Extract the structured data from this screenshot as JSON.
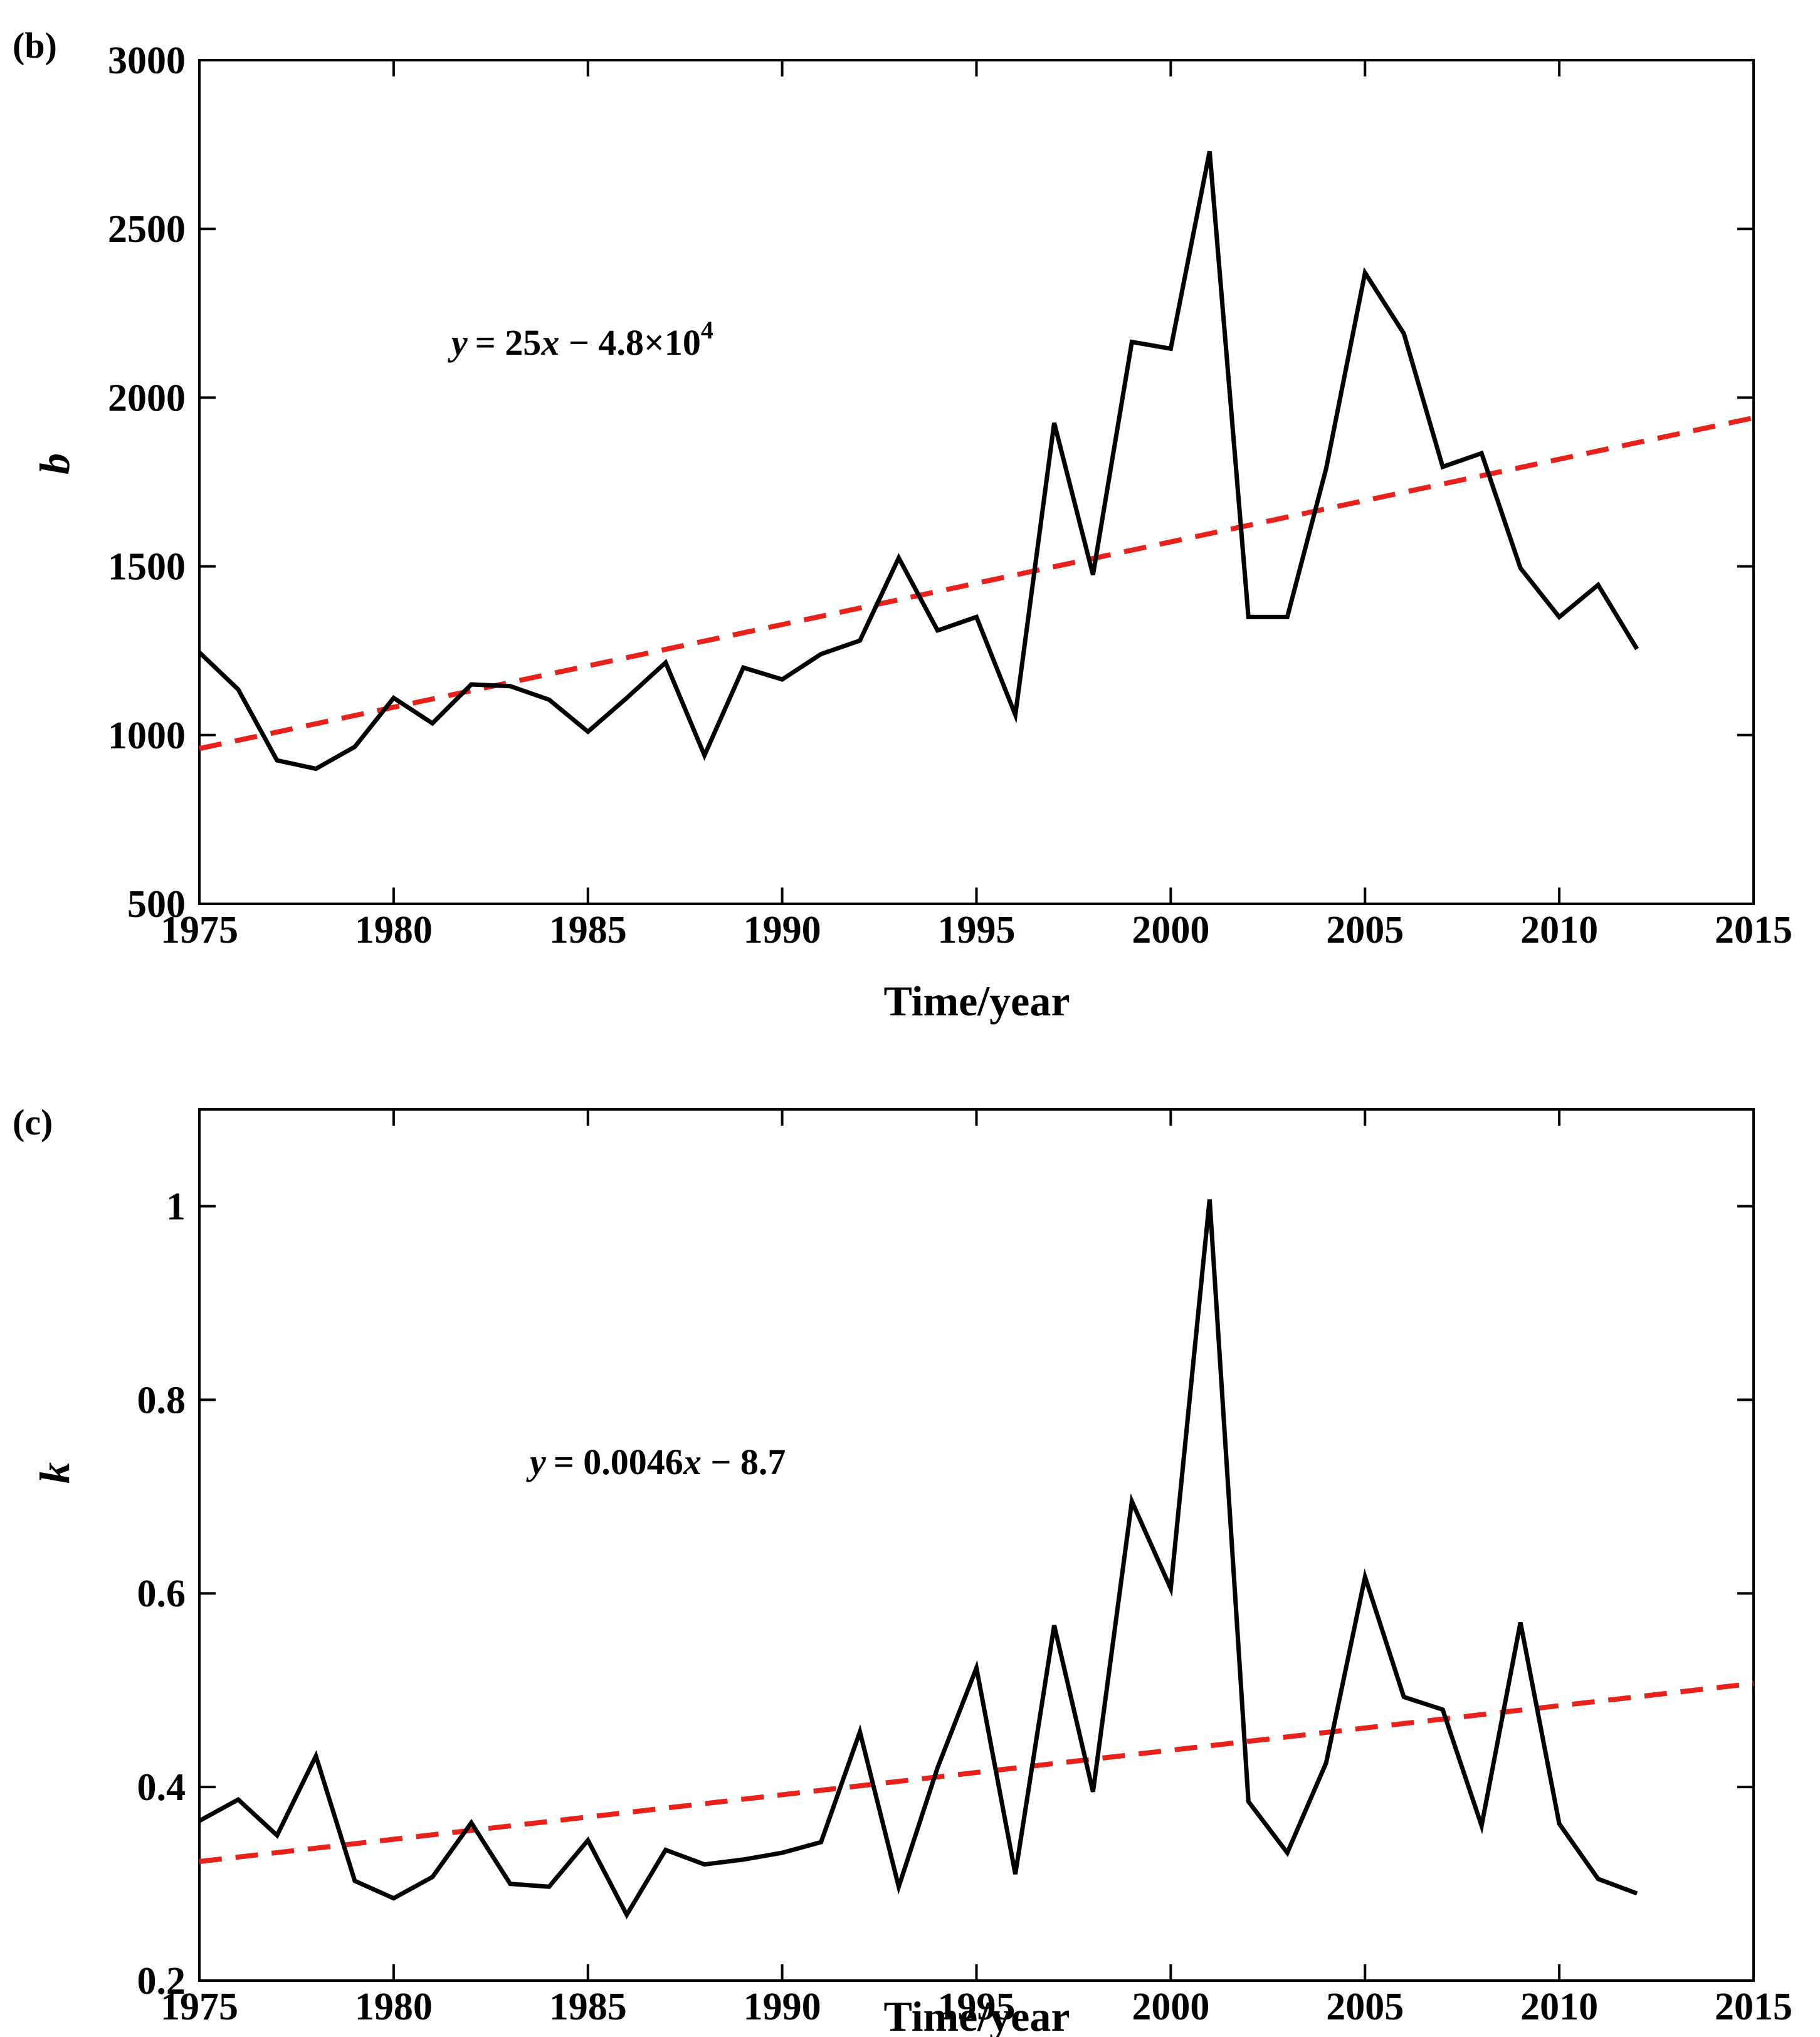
{
  "chart_data": [
    {
      "type": "line",
      "panel_label": "(b)",
      "xlabel": "Time/year",
      "ylabel": "b",
      "xlim": [
        1975,
        2015
      ],
      "ylim": [
        500,
        3000
      ],
      "xticks": [
        1975,
        1980,
        1985,
        1990,
        1995,
        2000,
        2005,
        2010,
        2015
      ],
      "yticks": [
        500,
        1000,
        1500,
        2000,
        2500,
        3000
      ],
      "equation": {
        "var": "y",
        "eq": "= 25",
        "xvar": "x",
        "rest": " − 4.8×10",
        "exp": "4"
      },
      "series": [
        {
          "name": "b",
          "color": "#000000",
          "style": "solid",
          "x": [
            1975,
            1976,
            1977,
            1978,
            1979,
            1980,
            1981,
            1982,
            1983,
            1984,
            1985,
            1986,
            1987,
            1988,
            1989,
            1990,
            1991,
            1992,
            1993,
            1994,
            1995,
            1996,
            1997,
            1998,
            1999,
            2000,
            2001,
            2002,
            2003,
            2004,
            2005,
            2006,
            2007,
            2008,
            2009,
            2010,
            2011,
            2012
          ],
          "values": [
            1245,
            1135,
            925,
            900,
            965,
            1110,
            1035,
            1150,
            1145,
            1105,
            1010,
            1110,
            1215,
            940,
            1200,
            1165,
            1240,
            1280,
            1525,
            1310,
            1350,
            1060,
            1925,
            1475,
            2165,
            2145,
            2730,
            1350,
            1350,
            1790,
            2370,
            2190,
            1795,
            1835,
            1495,
            1350,
            1445,
            1255
          ]
        },
        {
          "name": "trend",
          "color": "#e8221b",
          "style": "dashed",
          "x": [
            1975,
            2015
          ],
          "values": [
            960,
            1940
          ]
        }
      ]
    },
    {
      "type": "line",
      "panel_label": "(c)",
      "xlabel": "Time/year",
      "ylabel": "k",
      "xlim": [
        1975,
        2015
      ],
      "ylim": [
        0.2,
        1.1
      ],
      "xticks": [
        1975,
        1980,
        1985,
        1990,
        1995,
        2000,
        2005,
        2010,
        2015
      ],
      "yticks": [
        0.2,
        0.4,
        0.6,
        0.8,
        1
      ],
      "equation": {
        "var": "y",
        "eq": "= 0.0046",
        "xvar": "x",
        "rest": " −  8.7",
        "exp": ""
      },
      "series": [
        {
          "name": "k",
          "color": "#000000",
          "style": "solid",
          "x": [
            1975,
            1976,
            1977,
            1978,
            1979,
            1980,
            1981,
            1982,
            1983,
            1984,
            1985,
            1986,
            1987,
            1988,
            1989,
            1990,
            1991,
            1992,
            1993,
            1994,
            1995,
            1996,
            1997,
            1998,
            1999,
            2000,
            2001,
            2002,
            2003,
            2004,
            2005,
            2006,
            2007,
            2008,
            2009,
            2010,
            2011,
            2012
          ],
          "values": [
            0.365,
            0.387,
            0.35,
            0.432,
            0.303,
            0.285,
            0.307,
            0.363,
            0.3,
            0.297,
            0.345,
            0.268,
            0.335,
            0.32,
            0.325,
            0.332,
            0.343,
            0.457,
            0.297,
            0.42,
            0.523,
            0.31,
            0.567,
            0.395,
            0.695,
            0.605,
            1.007,
            0.385,
            0.332,
            0.425,
            0.617,
            0.493,
            0.48,
            0.36,
            0.57,
            0.362,
            0.305,
            0.29
          ]
        },
        {
          "name": "trend",
          "color": "#e8221b",
          "style": "dashed",
          "x": [
            1975,
            2015
          ],
          "values": [
            0.323,
            0.507
          ]
        }
      ]
    }
  ]
}
